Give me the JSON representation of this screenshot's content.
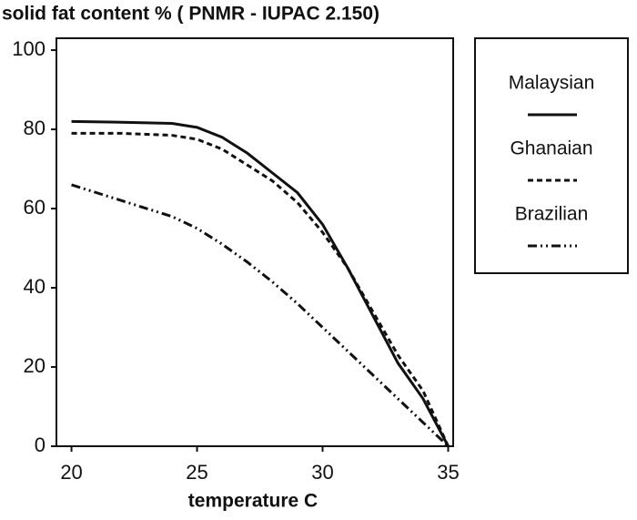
{
  "chart_data": {
    "type": "line",
    "title": "solid fat content % ( PNMR - IUPAC 2.150)",
    "x_label": "temperature C",
    "x": [
      20,
      22,
      24,
      25,
      26,
      27,
      28,
      29,
      30,
      31,
      32,
      33,
      34,
      35
    ],
    "series": [
      {
        "name": "Malaysian",
        "color": "#111111",
        "dash": "solid",
        "values": [
          82,
          81.8,
          81.5,
          80.5,
          78,
          74,
          69,
          64,
          56,
          45,
          33,
          21,
          12,
          0
        ]
      },
      {
        "name": "Ghanaian",
        "color": "#111111",
        "dash": "dashed",
        "values": [
          79,
          79,
          78.5,
          77.5,
          75,
          71,
          67,
          61.5,
          54,
          45,
          34,
          23,
          14,
          0
        ]
      },
      {
        "name": "Brazilian",
        "color": "#111111",
        "dash": "dash-dot-dot",
        "values": [
          66,
          62,
          58,
          55,
          51,
          46.5,
          41.5,
          36,
          30,
          24,
          18,
          12,
          6,
          0
        ]
      }
    ],
    "xlim": [
      19.4,
      35.2
    ],
    "xticks": [
      20,
      25,
      30,
      35
    ],
    "ylim": [
      0,
      103
    ],
    "yticks": [
      0,
      20,
      40,
      60,
      80,
      100
    ],
    "legend": "right"
  }
}
